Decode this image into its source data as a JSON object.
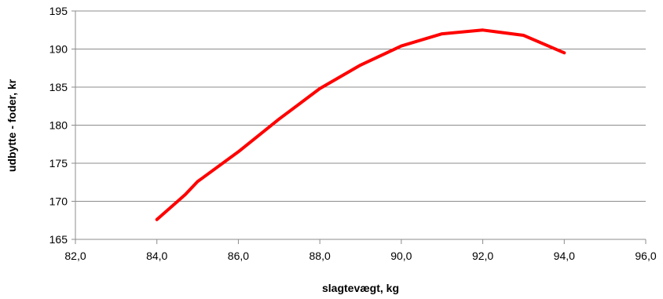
{
  "chart_data": {
    "type": "line",
    "title": "",
    "xlabel": "slagtevægt, kg",
    "ylabel": "udbytte - foder, kr",
    "xlim": [
      82,
      96
    ],
    "ylim": [
      165,
      195
    ],
    "x_ticks": [
      "82,0",
      "84,0",
      "86,0",
      "88,0",
      "90,0",
      "92,0",
      "94,0",
      "96,0"
    ],
    "y_ticks": [
      "165",
      "170",
      "175",
      "180",
      "185",
      "190",
      "195"
    ],
    "grid": "horizontal",
    "legend": "none",
    "series": [
      {
        "color": "#ff0000",
        "x": [
          84.0,
          84.7,
          85.0,
          86.0,
          87.0,
          88.0,
          89.0,
          90.0,
          91.0,
          92.0,
          93.0,
          94.0
        ],
        "y": [
          167.6,
          170.9,
          172.6,
          176.5,
          180.8,
          184.8,
          187.9,
          190.4,
          192.0,
          192.5,
          191.8,
          189.5
        ]
      }
    ]
  }
}
